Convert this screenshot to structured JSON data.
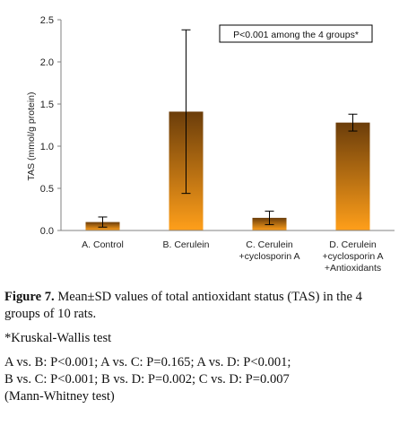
{
  "chart_data": {
    "type": "bar",
    "categories": [
      [
        "A. Control"
      ],
      [
        "B. Cerulein"
      ],
      [
        "C. Cerulein",
        "+cyclosporin A"
      ],
      [
        "D. Cerulein",
        "+cyclosporin A",
        "+Antioxidants"
      ]
    ],
    "values": [
      0.1,
      1.41,
      0.15,
      1.28
    ],
    "error": [
      0.06,
      0.97,
      0.08,
      0.1
    ],
    "ylabel": "TAS (mmol/g protein)",
    "ylim": [
      0,
      2.5
    ],
    "yticks": [
      "0.0",
      "0.5",
      "1.0",
      "1.5",
      "2.0",
      "2.5"
    ],
    "annotation": "P<0.001 among the 4 groups*",
    "annotation_position": "top-right",
    "grid": false,
    "colors": {
      "bar_top": "#6b3d0a",
      "bar_bottom": "#ff9f1a",
      "axis": "#808080",
      "error": "#000000"
    }
  },
  "caption": {
    "figure_label": "Figure 7.",
    "figure_text": "Mean±SD values of total antioxidant status (TAS) in the 4 groups of 10 rats.",
    "footnote": "*Kruskal-Wallis test",
    "stats_lines": [
      "A vs. B: P<0.001; A vs. C: P=0.165; A vs. D: P<0.001;",
      "B vs. C: P<0.001; B vs. D: P=0.002; C vs. D: P=0.007",
      "(Mann-Whitney test)"
    ]
  }
}
